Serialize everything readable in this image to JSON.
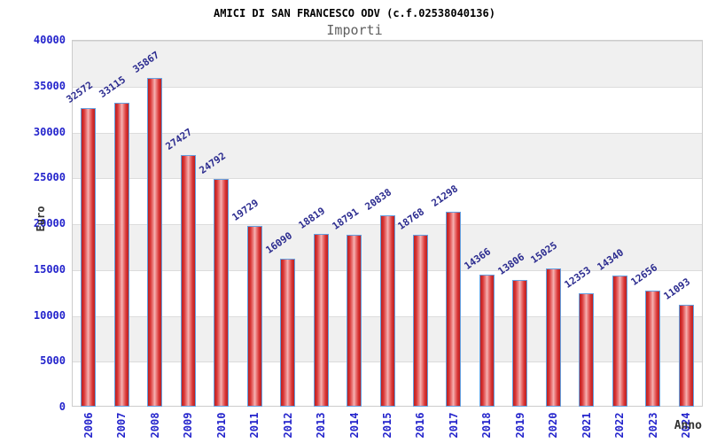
{
  "chart_data": {
    "type": "bar",
    "title": "AMICI DI SAN FRANCESCO ODV (c.f.02538040136)",
    "subtitle": "Importi",
    "xlabel": "Anno",
    "ylabel": "Euro",
    "categories": [
      "2006",
      "2007",
      "2008",
      "2009",
      "2010",
      "2011",
      "2012",
      "2013",
      "2014",
      "2015",
      "2016",
      "2017",
      "2018",
      "2019",
      "2020",
      "2021",
      "2022",
      "2023",
      "2024"
    ],
    "values": [
      32572,
      33115,
      35867,
      27427,
      24792,
      19729,
      16090,
      18819,
      18791,
      20838,
      18768,
      21298,
      14366,
      13806,
      15025,
      12353,
      14340,
      12656,
      11093
    ],
    "value_labels": [
      "32572",
      "33115",
      "35867",
      "27427",
      "24792",
      "19729",
      "16090",
      "18819",
      "18791",
      "20838",
      "18768",
      "21298",
      "14366",
      "13806",
      "15025",
      "12353",
      "14340",
      "12656",
      "11093"
    ],
    "ylim": [
      0,
      40000
    ],
    "ytick_step": 5000,
    "yticks": [
      "0",
      "5000",
      "10000",
      "15000",
      "20000",
      "25000",
      "30000",
      "35000",
      "40000"
    ],
    "legend": "none",
    "grid": "alternating horizontal gray/white bands every 5000 with light gridlines",
    "bar_label_rotation_deg": -35,
    "x_label_rotation_deg": -90,
    "colors": {
      "bar_edge": "#b92121",
      "bar_mid": "#d93434",
      "bar_highlight": "#f6b5b5",
      "bar_border": "#64a0e0",
      "tick_label": "#2424cc",
      "value_label": "#2b2b8f",
      "title": "#000000",
      "subtitle": "#5f5f5f",
      "axis_title": "#333333",
      "band_gray": "#f0f0f0",
      "plot_border": "#cccccc",
      "gridline": "#dcdcdc",
      "background": "#ffffff"
    }
  }
}
